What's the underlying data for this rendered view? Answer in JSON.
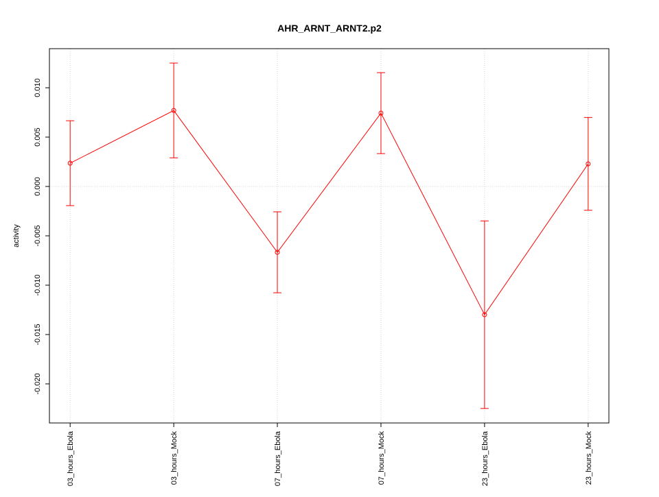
{
  "chart_data": {
    "type": "line",
    "title": "AHR_ARNT_ARNT2.p2",
    "y_label": "activity",
    "categories": [
      "03_hours_Ebola",
      "03_hours_Mock",
      "07_hours_Ebola",
      "07_hours_Mock",
      "23_hours_Ebola",
      "23_hours_Mock"
    ],
    "values": [
      0.00236,
      0.0077,
      -0.00667,
      0.00743,
      -0.01299,
      0.00229
    ],
    "errors": [
      0.0043,
      0.0048,
      0.0041,
      0.0041,
      0.0095,
      0.0047
    ],
    "color": "#ff0000",
    "ylim": [
      -0.02396,
      0.01396
    ],
    "yticks": [
      {
        "value": -0.02,
        "label": "-0.020"
      },
      -0.015,
      {
        "value": -0.01,
        "label": "-0.010"
      },
      -0.005,
      {
        "value": 0,
        "label": "0.000"
      },
      0.005,
      {
        "value": 0.01,
        "label": "0.010"
      }
    ],
    "grid": true
  }
}
